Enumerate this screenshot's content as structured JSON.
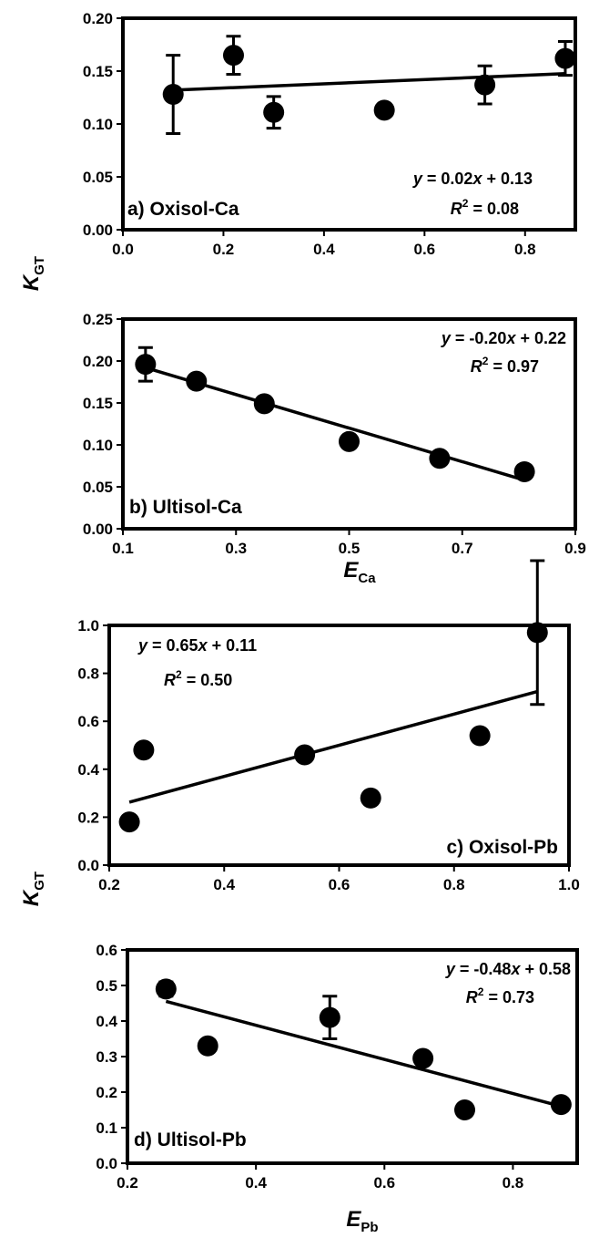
{
  "y_axis_titles": [
    {
      "main": "K",
      "sub": "GT"
    },
    {
      "main": "K",
      "sub": "GT"
    }
  ],
  "x_axis_titles": [
    {
      "main": "E",
      "sub": "Ca"
    },
    {
      "main": "E",
      "sub": "Pb"
    }
  ],
  "chart_data": [
    {
      "type": "scatter",
      "panel_label": "a) Oxisol-Ca",
      "equation": {
        "y": "y",
        "eq": " = 0.02",
        "x": "x",
        "rest": " + 0.13"
      },
      "r2": {
        "R": "R",
        "sup": "2",
        "rest": " = 0.08"
      },
      "xlim": [
        0.0,
        0.9
      ],
      "ylim": [
        0.0,
        0.2
      ],
      "xticks": [
        "0.0",
        "0.2",
        "0.4",
        "0.6",
        "0.8"
      ],
      "xtick_values": [
        0.0,
        0.2,
        0.4,
        0.6,
        0.8
      ],
      "yticks": [
        "0.00",
        "0.05",
        "0.10",
        "0.15",
        "0.20"
      ],
      "ytick_values": [
        0.0,
        0.05,
        0.1,
        0.15,
        0.2
      ],
      "points": [
        {
          "x": 0.1,
          "y": 0.128,
          "err": 0.037
        },
        {
          "x": 0.22,
          "y": 0.165,
          "err": 0.018
        },
        {
          "x": 0.3,
          "y": 0.111,
          "err": 0.015
        },
        {
          "x": 0.52,
          "y": 0.113,
          "err": 0
        },
        {
          "x": 0.72,
          "y": 0.137,
          "err": 0.018
        },
        {
          "x": 0.88,
          "y": 0.162,
          "err": 0.016
        }
      ],
      "fit": {
        "slope": 0.02,
        "intercept": 0.13,
        "x_range": [
          0.1,
          0.88
        ]
      },
      "label_position": "bottom-left",
      "equation_position": "bottom-right"
    },
    {
      "type": "scatter",
      "panel_label": "b) Ultisol-Ca",
      "equation": {
        "y": "y",
        "eq": " = -0.20",
        "x": "x",
        "rest": " + 0.22"
      },
      "r2": {
        "R": "R",
        "sup": "2",
        "rest": " = 0.97"
      },
      "xlim": [
        0.1,
        0.9
      ],
      "ylim": [
        0.0,
        0.25
      ],
      "xticks": [
        "0.1",
        "0.3",
        "0.5",
        "0.7",
        "0.9"
      ],
      "xtick_values": [
        0.1,
        0.3,
        0.5,
        0.7,
        0.9
      ],
      "yticks": [
        "0.00",
        "0.05",
        "0.10",
        "0.15",
        "0.20",
        "0.25"
      ],
      "ytick_values": [
        0.0,
        0.05,
        0.1,
        0.15,
        0.2,
        0.25
      ],
      "points": [
        {
          "x": 0.14,
          "y": 0.196,
          "err": 0.02
        },
        {
          "x": 0.23,
          "y": 0.176,
          "err": 0
        },
        {
          "x": 0.35,
          "y": 0.149,
          "err": 0
        },
        {
          "x": 0.5,
          "y": 0.104,
          "err": 0
        },
        {
          "x": 0.66,
          "y": 0.084,
          "err": 0
        },
        {
          "x": 0.81,
          "y": 0.068,
          "err": 0
        }
      ],
      "fit": {
        "slope": -0.2,
        "intercept": 0.22,
        "x_range": [
          0.14,
          0.81
        ]
      },
      "label_position": "bottom-left",
      "equation_position": "top-right"
    },
    {
      "type": "scatter",
      "panel_label": "c) Oxisol-Pb",
      "equation": {
        "y": "y",
        "eq": " = 0.65",
        "x": "x",
        "rest": " + 0.11"
      },
      "r2": {
        "R": "R",
        "sup": "2",
        "rest": " = 0.50"
      },
      "xlim": [
        0.2,
        1.0
      ],
      "ylim": [
        0.0,
        1.0
      ],
      "xticks": [
        "0.2",
        "0.4",
        "0.6",
        "0.8",
        "1.0"
      ],
      "xtick_values": [
        0.2,
        0.4,
        0.6,
        0.8,
        1.0
      ],
      "yticks": [
        "0.0",
        "0.2",
        "0.4",
        "0.6",
        "0.8",
        "1.0"
      ],
      "ytick_values": [
        0.0,
        0.2,
        0.4,
        0.6,
        0.8,
        1.0
      ],
      "points": [
        {
          "x": 0.235,
          "y": 0.18,
          "err": 0
        },
        {
          "x": 0.26,
          "y": 0.48,
          "err": 0
        },
        {
          "x": 0.54,
          "y": 0.46,
          "err": 0
        },
        {
          "x": 0.655,
          "y": 0.28,
          "err": 0
        },
        {
          "x": 0.845,
          "y": 0.54,
          "err": 0
        },
        {
          "x": 0.945,
          "y": 0.97,
          "err": 0.3
        }
      ],
      "fit": {
        "slope": 0.65,
        "intercept": 0.11,
        "x_range": [
          0.235,
          0.945
        ]
      },
      "label_position": "bottom-right",
      "equation_position": "top-left"
    },
    {
      "type": "scatter",
      "panel_label": "d) Ultisol-Pb",
      "equation": {
        "y": "y",
        "eq": " = -0.48",
        "x": "x",
        "rest": " + 0.58"
      },
      "r2": {
        "R": "R",
        "sup": "2",
        "rest": " = 0.73"
      },
      "xlim": [
        0.2,
        0.9
      ],
      "ylim": [
        0.0,
        0.6
      ],
      "xticks": [
        "0.2",
        "0.4",
        "0.6",
        "0.8"
      ],
      "xtick_values": [
        0.2,
        0.4,
        0.6,
        0.8
      ],
      "yticks": [
        "0.0",
        "0.1",
        "0.2",
        "0.3",
        "0.4",
        "0.5",
        "0.6"
      ],
      "ytick_values": [
        0.0,
        0.1,
        0.2,
        0.3,
        0.4,
        0.5,
        0.6
      ],
      "points": [
        {
          "x": 0.26,
          "y": 0.49,
          "err": 0.02
        },
        {
          "x": 0.325,
          "y": 0.33,
          "err": 0
        },
        {
          "x": 0.515,
          "y": 0.41,
          "err": 0.06
        },
        {
          "x": 0.66,
          "y": 0.295,
          "err": 0
        },
        {
          "x": 0.725,
          "y": 0.15,
          "err": 0
        },
        {
          "x": 0.875,
          "y": 0.165,
          "err": 0
        }
      ],
      "fit": {
        "slope": -0.48,
        "intercept": 0.58,
        "x_range": [
          0.26,
          0.875
        ]
      },
      "label_position": "bottom-left",
      "equation_position": "top-right"
    }
  ]
}
